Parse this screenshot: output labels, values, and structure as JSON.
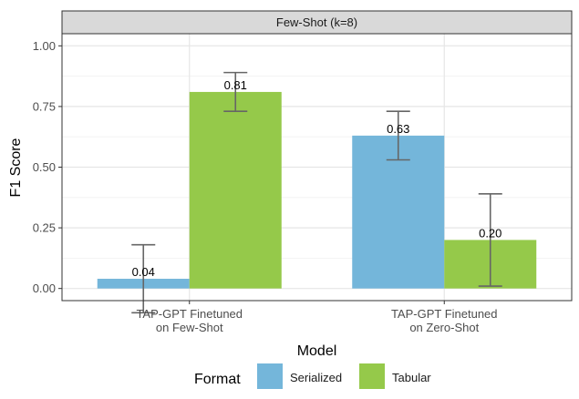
{
  "chart_data": {
    "type": "bar",
    "title": "",
    "facet_label": "Few-Shot (k=8)",
    "xlabel": "Model",
    "ylabel": "F1 Score",
    "ylim": [
      -0.05,
      1.05
    ],
    "yticks": [
      0.0,
      0.25,
      0.5,
      0.75,
      1.0
    ],
    "ytick_labels": [
      "0.00",
      "0.25",
      "0.50",
      "0.75",
      "1.00"
    ],
    "categories": [
      [
        "TAP-GPT Finetuned",
        "on Few-Shot"
      ],
      [
        "TAP-GPT Finetuned",
        "on Zero-Shot"
      ]
    ],
    "legend_title": "Format",
    "legend_position": "bottom",
    "grid": true,
    "series": [
      {
        "name": "Serialized",
        "color": "#74b6da",
        "values": [
          0.04,
          0.63
        ],
        "labels": [
          "0.04",
          "0.63"
        ],
        "err_low": [
          -0.1,
          0.53
        ],
        "err_high": [
          0.18,
          0.73
        ]
      },
      {
        "name": "Tabular",
        "color": "#95c94a",
        "values": [
          0.81,
          0.2
        ],
        "labels": [
          "0.81",
          "0.20"
        ],
        "err_low": [
          0.73,
          0.01
        ],
        "err_high": [
          0.89,
          0.39
        ]
      }
    ]
  }
}
